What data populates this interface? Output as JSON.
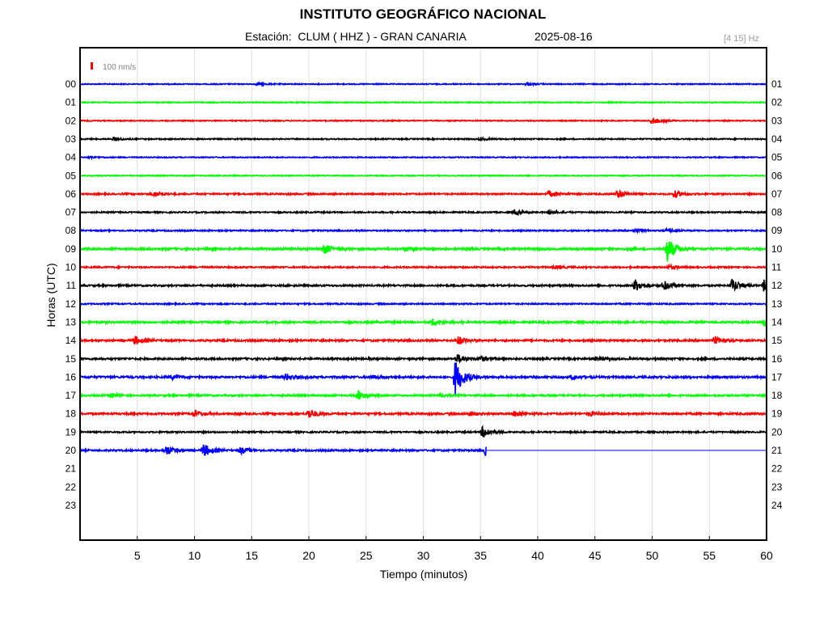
{
  "header": {
    "title": "INSTITUTO GEOGRÁFICO NACIONAL",
    "station_label": "Estación:",
    "station_name": "CLUM ( HHZ ) - GRAN CANARIA",
    "date": "2025-08-16",
    "filter": "[4 15] Hz"
  },
  "scale_label": "100 nm/s",
  "colors": {
    "scale_bar": "#ff0000",
    "grid": "#e0e0e0",
    "cycle": [
      "#0000ff",
      "#00ff00",
      "#ff0000",
      "#000000"
    ]
  },
  "chart_data": {
    "type": "line",
    "title": "INSTITUTO GEOGRÁFICO NACIONAL",
    "xlabel": "Tiempo (minutos)",
    "ylabel": "Horas (UTC)",
    "xlim": [
      0,
      60
    ],
    "x_ticks": [
      "5",
      "10",
      "15",
      "20",
      "25",
      "30",
      "35",
      "40",
      "45",
      "50",
      "55",
      "60"
    ],
    "y_ticks_left": [
      "00",
      "01",
      "02",
      "03",
      "04",
      "05",
      "06",
      "07",
      "08",
      "09",
      "10",
      "11",
      "12",
      "13",
      "14",
      "15",
      "16",
      "17",
      "18",
      "19",
      "20",
      "21",
      "22",
      "23"
    ],
    "y_ticks_right": [
      "01",
      "02",
      "03",
      "04",
      "05",
      "06",
      "07",
      "08",
      "09",
      "10",
      "11",
      "12",
      "13",
      "14",
      "15",
      "16",
      "17",
      "18",
      "19",
      "20",
      "21",
      "22",
      "23",
      "24"
    ],
    "grid": true,
    "recorded_until_minute": 35.5,
    "traces": [
      {
        "hour": "00",
        "color": "#0000ff",
        "noise": 0.6,
        "events": [
          [
            15.5,
            1.5
          ],
          [
            39,
            1.5
          ]
        ]
      },
      {
        "hour": "01",
        "color": "#00ff00",
        "noise": 0.6,
        "events": []
      },
      {
        "hour": "02",
        "color": "#ff0000",
        "noise": 0.6,
        "events": [
          [
            50,
            4
          ]
        ]
      },
      {
        "hour": "03",
        "color": "#000000",
        "noise": 0.7,
        "events": [
          [
            3,
            2
          ],
          [
            35,
            1.5
          ]
        ]
      },
      {
        "hour": "04",
        "color": "#0000ff",
        "noise": 0.6,
        "events": [
          [
            0.8,
            1.5
          ]
        ]
      },
      {
        "hour": "05",
        "color": "#00ff00",
        "noise": 0.6,
        "events": []
      },
      {
        "hour": "06",
        "color": "#ff0000",
        "noise": 0.9,
        "events": [
          [
            6.5,
            3
          ],
          [
            41,
            4
          ],
          [
            47,
            5
          ],
          [
            52,
            4
          ]
        ]
      },
      {
        "hour": "07",
        "color": "#000000",
        "noise": 0.8,
        "events": [
          [
            38,
            3
          ],
          [
            41,
            2.5
          ]
        ]
      },
      {
        "hour": "08",
        "color": "#0000ff",
        "noise": 0.8,
        "events": [
          [
            48.5,
            2
          ],
          [
            51.3,
            2
          ]
        ]
      },
      {
        "hour": "09",
        "color": "#00ff00",
        "noise": 1.2,
        "events": [
          [
            21.3,
            6
          ],
          [
            28.5,
            2
          ],
          [
            51.3,
            16
          ]
        ]
      },
      {
        "hour": "10",
        "color": "#ff0000",
        "noise": 0.9,
        "events": [
          [
            41.5,
            2
          ],
          [
            51.5,
            2.5
          ]
        ]
      },
      {
        "hour": "11",
        "color": "#000000",
        "noise": 1.0,
        "events": [
          [
            48.5,
            7
          ],
          [
            51,
            6
          ],
          [
            57,
            8
          ],
          [
            59.8,
            9
          ]
        ]
      },
      {
        "hour": "12",
        "color": "#0000ff",
        "noise": 0.8,
        "events": []
      },
      {
        "hour": "13",
        "color": "#00ff00",
        "noise": 1.1,
        "events": [
          [
            30.8,
            4
          ],
          [
            59.8,
            5
          ]
        ]
      },
      {
        "hour": "14",
        "color": "#ff0000",
        "noise": 1.1,
        "events": [
          [
            4.8,
            5
          ],
          [
            33,
            5
          ],
          [
            55.5,
            4.5
          ]
        ]
      },
      {
        "hour": "15",
        "color": "#000000",
        "noise": 1.1,
        "events": [
          [
            33,
            5
          ],
          [
            35,
            3
          ],
          [
            45,
            2
          ]
        ]
      },
      {
        "hour": "16",
        "color": "#0000ff",
        "noise": 1.2,
        "events": [
          [
            32.8,
            22
          ],
          [
            18,
            4
          ],
          [
            43,
            3
          ],
          [
            8,
            2
          ],
          [
            25.5,
            2
          ]
        ]
      },
      {
        "hour": "17",
        "color": "#00ff00",
        "noise": 1.0,
        "events": [
          [
            24.3,
            6
          ],
          [
            2.8,
            2.5
          ],
          [
            31.5,
            2
          ]
        ]
      },
      {
        "hour": "18",
        "color": "#ff0000",
        "noise": 1.1,
        "events": [
          [
            20,
            6
          ],
          [
            10,
            4
          ],
          [
            38,
            4
          ],
          [
            44.5,
            3
          ],
          [
            34,
            2
          ]
        ]
      },
      {
        "hour": "19",
        "color": "#000000",
        "noise": 0.9,
        "events": [
          [
            35.2,
            7
          ]
        ]
      },
      {
        "hour": "20",
        "color": "#0000ff",
        "noise": 1.0,
        "events": [
          [
            7.5,
            6
          ],
          [
            10.8,
            8
          ],
          [
            14,
            4
          ],
          [
            35.5,
            9
          ]
        ]
      }
    ]
  }
}
